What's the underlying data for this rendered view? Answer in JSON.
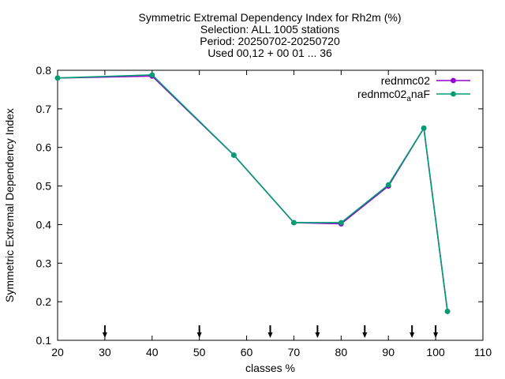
{
  "chart_data": {
    "type": "line",
    "title_lines": [
      "Symmetric Extremal Dependency Index  for Rh2m (%)",
      "Selection: ALL   1005 stations",
      "Period: 20250702-20250720",
      "Used 00,12 + 00 01 ... 36"
    ],
    "xlabel": "classes %",
    "ylabel": "Symmetric Extremal Dependency Index",
    "xlim": [
      20,
      110
    ],
    "ylim": [
      0.1,
      0.8
    ],
    "xticks": [
      20,
      30,
      40,
      50,
      60,
      70,
      80,
      90,
      100,
      110
    ],
    "yticks": [
      0.1,
      0.2,
      0.3,
      0.4,
      0.5,
      0.6,
      0.7,
      0.8
    ],
    "xtick_labels": [
      "20",
      "30",
      "40",
      "50",
      "60",
      "70",
      "80",
      "90",
      "100",
      "110"
    ],
    "ytick_labels": [
      "0.1",
      "0.2",
      "0.3",
      "0.4",
      "0.5",
      "0.6",
      "0.7",
      "0.8"
    ],
    "grid": false,
    "legend_position": "top-right",
    "series": [
      {
        "name": "rednmc02",
        "color": "#9400d3",
        "x": [
          20,
          40,
          57.3,
          70,
          80,
          90,
          97.5,
          102.5
        ],
        "y": [
          0.78,
          0.785,
          0.58,
          0.405,
          0.402,
          0.5,
          0.65,
          0.175
        ]
      },
      {
        "name": "rednmc02",
        "name_subscript": "a",
        "name_suffix": "naF",
        "color": "#009e73",
        "x": [
          20,
          40,
          57.3,
          70,
          80,
          90,
          97.5,
          102.5
        ],
        "y": [
          0.78,
          0.788,
          0.58,
          0.405,
          0.405,
          0.503,
          0.65,
          0.175
        ]
      }
    ],
    "class_markers_x": [
      30,
      50,
      65,
      75,
      85,
      95,
      100
    ]
  }
}
